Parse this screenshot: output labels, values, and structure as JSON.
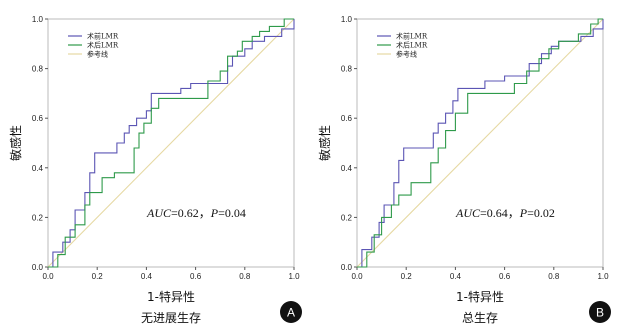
{
  "colors": {
    "preop": "#5b55b4",
    "postop": "#2e9a4a",
    "reference": "#e6d9a3",
    "frame": "#bbbbbb"
  },
  "chart_data": [
    {
      "type": "line",
      "panel_label": "A",
      "caption": "无进展生存",
      "xlabel": "1-特异性",
      "ylabel": "敏感性",
      "xlim": [
        0,
        1
      ],
      "ylim": [
        0,
        1
      ],
      "x_ticks": [
        "0.0",
        "0.2",
        "0.4",
        "0.6",
        "0.8",
        "1.0"
      ],
      "y_ticks": [
        "0.0",
        "0.2",
        "0.4",
        "0.6",
        "0.8",
        "1.0"
      ],
      "grid": false,
      "legend_position": "top-left",
      "annotation": {
        "auc_label": "AUC",
        "auc_value": "=0.62，",
        "p_label": "P",
        "p_value": "=0.04"
      },
      "series": [
        {
          "name": "术前LMR",
          "color_key": "preop",
          "points": [
            [
              0,
              0
            ],
            [
              0.02,
              0
            ],
            [
              0.02,
              0.06
            ],
            [
              0.06,
              0.06
            ],
            [
              0.06,
              0.1
            ],
            [
              0.09,
              0.1
            ],
            [
              0.09,
              0.15
            ],
            [
              0.11,
              0.15
            ],
            [
              0.11,
              0.23
            ],
            [
              0.15,
              0.23
            ],
            [
              0.15,
              0.3
            ],
            [
              0.17,
              0.3
            ],
            [
              0.17,
              0.38
            ],
            [
              0.19,
              0.38
            ],
            [
              0.19,
              0.46
            ],
            [
              0.28,
              0.46
            ],
            [
              0.28,
              0.5
            ],
            [
              0.31,
              0.5
            ],
            [
              0.31,
              0.54
            ],
            [
              0.33,
              0.54
            ],
            [
              0.33,
              0.57
            ],
            [
              0.36,
              0.57
            ],
            [
              0.36,
              0.6
            ],
            [
              0.4,
              0.6
            ],
            [
              0.4,
              0.63
            ],
            [
              0.42,
              0.63
            ],
            [
              0.42,
              0.7
            ],
            [
              0.54,
              0.7
            ],
            [
              0.54,
              0.72
            ],
            [
              0.58,
              0.72
            ],
            [
              0.58,
              0.74
            ],
            [
              0.73,
              0.74
            ],
            [
              0.73,
              0.81
            ],
            [
              0.75,
              0.81
            ],
            [
              0.75,
              0.85
            ],
            [
              0.8,
              0.85
            ],
            [
              0.8,
              0.88
            ],
            [
              0.83,
              0.88
            ],
            [
              0.83,
              0.91
            ],
            [
              0.88,
              0.91
            ],
            [
              0.88,
              0.93
            ],
            [
              0.95,
              0.93
            ],
            [
              0.95,
              0.96
            ],
            [
              1,
              0.96
            ],
            [
              1,
              1
            ]
          ]
        },
        {
          "name": "术后LMR",
          "color_key": "postop",
          "points": [
            [
              0,
              0
            ],
            [
              0.04,
              0
            ],
            [
              0.04,
              0.05
            ],
            [
              0.07,
              0.05
            ],
            [
              0.07,
              0.12
            ],
            [
              0.11,
              0.12
            ],
            [
              0.11,
              0.17
            ],
            [
              0.15,
              0.17
            ],
            [
              0.15,
              0.25
            ],
            [
              0.17,
              0.25
            ],
            [
              0.17,
              0.3
            ],
            [
              0.22,
              0.3
            ],
            [
              0.22,
              0.36
            ],
            [
              0.27,
              0.36
            ],
            [
              0.27,
              0.38
            ],
            [
              0.35,
              0.38
            ],
            [
              0.35,
              0.48
            ],
            [
              0.37,
              0.48
            ],
            [
              0.37,
              0.54
            ],
            [
              0.39,
              0.54
            ],
            [
              0.39,
              0.58
            ],
            [
              0.42,
              0.58
            ],
            [
              0.42,
              0.64
            ],
            [
              0.45,
              0.64
            ],
            [
              0.45,
              0.68
            ],
            [
              0.65,
              0.68
            ],
            [
              0.65,
              0.75
            ],
            [
              0.7,
              0.75
            ],
            [
              0.7,
              0.79
            ],
            [
              0.73,
              0.79
            ],
            [
              0.73,
              0.85
            ],
            [
              0.77,
              0.85
            ],
            [
              0.77,
              0.87
            ],
            [
              0.79,
              0.87
            ],
            [
              0.79,
              0.91
            ],
            [
              0.83,
              0.91
            ],
            [
              0.83,
              0.93
            ],
            [
              0.86,
              0.93
            ],
            [
              0.86,
              0.95
            ],
            [
              0.9,
              0.95
            ],
            [
              0.9,
              0.97
            ],
            [
              0.96,
              0.97
            ],
            [
              0.96,
              1
            ],
            [
              1,
              1
            ]
          ]
        },
        {
          "name": "参考线",
          "color_key": "reference",
          "points": [
            [
              0,
              0
            ],
            [
              1,
              1
            ]
          ]
        }
      ]
    },
    {
      "type": "line",
      "panel_label": "B",
      "caption": "总生存",
      "xlabel": "1-特异性",
      "ylabel": "敏感性",
      "xlim": [
        0,
        1
      ],
      "ylim": [
        0,
        1
      ],
      "x_ticks": [
        "0.0",
        "0.2",
        "0.4",
        "0.6",
        "0.8",
        "1.0"
      ],
      "y_ticks": [
        "0.0",
        "0.2",
        "0.4",
        "0.6",
        "0.8",
        "1.0"
      ],
      "grid": false,
      "legend_position": "top-left",
      "annotation": {
        "auc_label": "AUC",
        "auc_value": "=0.64，",
        "p_label": "P",
        "p_value": "=0.02"
      },
      "series": [
        {
          "name": "术前LMR",
          "color_key": "preop",
          "points": [
            [
              0,
              0
            ],
            [
              0.02,
              0
            ],
            [
              0.02,
              0.07
            ],
            [
              0.06,
              0.07
            ],
            [
              0.06,
              0.12
            ],
            [
              0.09,
              0.12
            ],
            [
              0.09,
              0.18
            ],
            [
              0.11,
              0.18
            ],
            [
              0.11,
              0.25
            ],
            [
              0.15,
              0.25
            ],
            [
              0.15,
              0.34
            ],
            [
              0.17,
              0.34
            ],
            [
              0.17,
              0.43
            ],
            [
              0.19,
              0.43
            ],
            [
              0.19,
              0.48
            ],
            [
              0.31,
              0.48
            ],
            [
              0.31,
              0.54
            ],
            [
              0.33,
              0.54
            ],
            [
              0.33,
              0.58
            ],
            [
              0.36,
              0.58
            ],
            [
              0.36,
              0.62
            ],
            [
              0.39,
              0.62
            ],
            [
              0.39,
              0.67
            ],
            [
              0.41,
              0.67
            ],
            [
              0.41,
              0.72
            ],
            [
              0.52,
              0.72
            ],
            [
              0.52,
              0.75
            ],
            [
              0.6,
              0.75
            ],
            [
              0.6,
              0.77
            ],
            [
              0.7,
              0.77
            ],
            [
              0.7,
              0.82
            ],
            [
              0.75,
              0.82
            ],
            [
              0.75,
              0.86
            ],
            [
              0.79,
              0.86
            ],
            [
              0.79,
              0.89
            ],
            [
              0.82,
              0.89
            ],
            [
              0.82,
              0.91
            ],
            [
              0.91,
              0.91
            ],
            [
              0.91,
              0.93
            ],
            [
              0.96,
              0.93
            ],
            [
              0.96,
              0.96
            ],
            [
              1,
              0.96
            ],
            [
              1,
              1
            ]
          ]
        },
        {
          "name": "术后LMR",
          "color_key": "postop",
          "points": [
            [
              0,
              0
            ],
            [
              0.04,
              0
            ],
            [
              0.04,
              0.06
            ],
            [
              0.07,
              0.06
            ],
            [
              0.07,
              0.13
            ],
            [
              0.1,
              0.13
            ],
            [
              0.1,
              0.2
            ],
            [
              0.14,
              0.2
            ],
            [
              0.14,
              0.25
            ],
            [
              0.17,
              0.25
            ],
            [
              0.17,
              0.29
            ],
            [
              0.22,
              0.29
            ],
            [
              0.22,
              0.34
            ],
            [
              0.3,
              0.34
            ],
            [
              0.3,
              0.42
            ],
            [
              0.33,
              0.42
            ],
            [
              0.33,
              0.48
            ],
            [
              0.36,
              0.48
            ],
            [
              0.36,
              0.55
            ],
            [
              0.4,
              0.55
            ],
            [
              0.4,
              0.62
            ],
            [
              0.45,
              0.62
            ],
            [
              0.45,
              0.7
            ],
            [
              0.64,
              0.7
            ],
            [
              0.64,
              0.74
            ],
            [
              0.69,
              0.74
            ],
            [
              0.69,
              0.79
            ],
            [
              0.74,
              0.79
            ],
            [
              0.74,
              0.84
            ],
            [
              0.78,
              0.84
            ],
            [
              0.78,
              0.88
            ],
            [
              0.82,
              0.88
            ],
            [
              0.82,
              0.91
            ],
            [
              0.9,
              0.91
            ],
            [
              0.9,
              0.94
            ],
            [
              0.95,
              0.94
            ],
            [
              0.95,
              0.98
            ],
            [
              0.98,
              0.98
            ],
            [
              0.98,
              1
            ],
            [
              1,
              1
            ]
          ]
        },
        {
          "name": "参考线",
          "color_key": "reference",
          "points": [
            [
              0,
              0
            ],
            [
              1,
              1
            ]
          ]
        }
      ]
    }
  ]
}
